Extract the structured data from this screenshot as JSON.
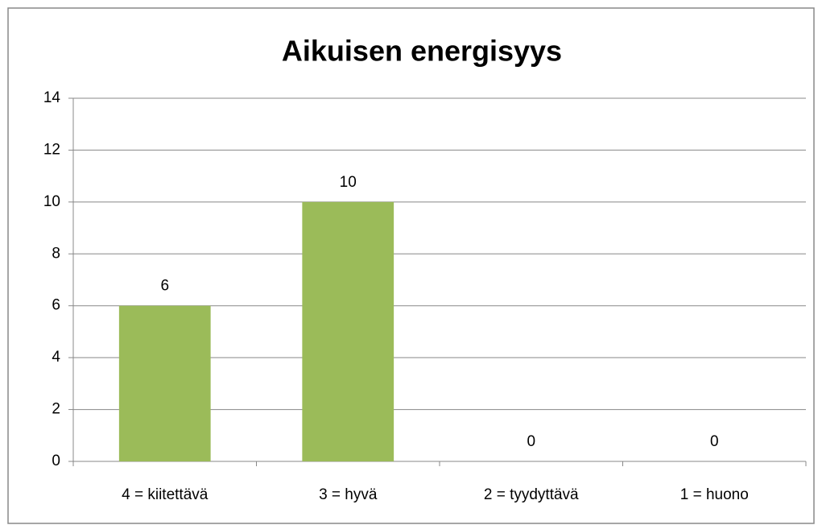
{
  "chart_data": {
    "type": "bar",
    "title": "Aikuisen energisyys",
    "categories": [
      "4 = kiitettävä",
      "3 = hyvä",
      "2 = tyydyttävä",
      "1 = huono"
    ],
    "values": [
      6,
      10,
      0,
      0
    ],
    "color": "#9bbb59",
    "ylim": [
      0,
      14
    ],
    "yticks": [
      0,
      2,
      4,
      6,
      8,
      10,
      12,
      14
    ],
    "grid": true,
    "data_labels": true
  }
}
